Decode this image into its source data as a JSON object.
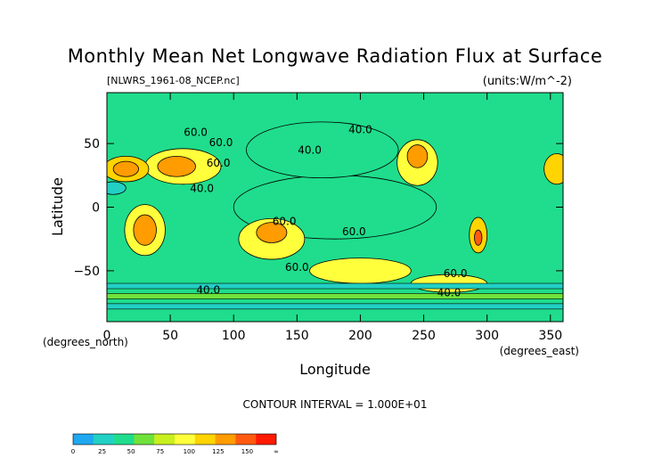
{
  "chart_data": {
    "type": "heatmap",
    "title": "Monthly Mean Net Longwave Radiation Flux at Surface",
    "source_label": "[NLWRS_1961-08_NCEP.nc]",
    "units_label": "(units:W/m^-2)",
    "xlabel": "Longitude",
    "ylabel": "Latitude",
    "x_unit_label": "(degrees_east)",
    "y_unit_label": "(degrees_north)",
    "xlim": [
      0,
      360
    ],
    "ylim": [
      -90,
      90
    ],
    "x_ticks": [
      "0",
      "50",
      "100",
      "150",
      "200",
      "250",
      "300",
      "350"
    ],
    "x_tick_values": [
      0,
      50,
      100,
      150,
      200,
      250,
      300,
      350
    ],
    "y_ticks": [
      "50",
      "0",
      "−50"
    ],
    "y_tick_values": [
      50,
      0,
      -50
    ],
    "contour_interval_text": "CONTOUR INTERVAL = 1.000E+01",
    "contour_labels": [
      {
        "text": "60.0",
        "lon": 70,
        "lat": 56
      },
      {
        "text": "60.0",
        "lon": 90,
        "lat": 48
      },
      {
        "text": "60.0",
        "lon": 88,
        "lat": 32
      },
      {
        "text": "40.0",
        "lon": 160,
        "lat": 42
      },
      {
        "text": "40.0",
        "lon": 200,
        "lat": 58
      },
      {
        "text": "40.0",
        "lon": 75,
        "lat": 12
      },
      {
        "text": "60.0",
        "lon": 140,
        "lat": -14
      },
      {
        "text": "60.0",
        "lon": 195,
        "lat": -22
      },
      {
        "text": "60.0",
        "lon": 150,
        "lat": -50
      },
      {
        "text": "60.0",
        "lon": 275,
        "lat": -55
      },
      {
        "text": "40.0",
        "lon": 80,
        "lat": -68
      },
      {
        "text": "40.0",
        "lon": 270,
        "lat": -70
      }
    ],
    "colorbar": {
      "tick_labels": [
        "0",
        "25",
        "50",
        "75",
        "100",
        "125",
        "150",
        "∞"
      ],
      "colors": [
        "#1ea8f0",
        "#22d0c4",
        "#1fdd8c",
        "#6fe23a",
        "#c8ef1e",
        "#ffff3c",
        "#ffd400",
        "#ff9c00",
        "#ff5a10",
        "#ff1a00"
      ]
    },
    "regions": [
      {
        "level": 6,
        "lon": 15,
        "lat": 30,
        "rx": 18,
        "ry": 10
      },
      {
        "level": 7,
        "lon": 15,
        "lat": 30,
        "rx": 10,
        "ry": 6
      },
      {
        "level": 5,
        "lon": 60,
        "lat": 32,
        "rx": 30,
        "ry": 14
      },
      {
        "level": 7,
        "lon": 55,
        "lat": 32,
        "rx": 15,
        "ry": 8
      },
      {
        "level": 5,
        "lon": 30,
        "lat": -18,
        "rx": 16,
        "ry": 20
      },
      {
        "level": 7,
        "lon": 30,
        "lat": -18,
        "rx": 9,
        "ry": 12
      },
      {
        "level": 5,
        "lon": 130,
        "lat": -25,
        "rx": 26,
        "ry": 16
      },
      {
        "level": 7,
        "lon": 130,
        "lat": -20,
        "rx": 12,
        "ry": 8
      },
      {
        "level": 5,
        "lon": 245,
        "lat": 35,
        "rx": 16,
        "ry": 18
      },
      {
        "level": 7,
        "lon": 245,
        "lat": 40,
        "rx": 8,
        "ry": 9
      },
      {
        "level": 6,
        "lon": 293,
        "lat": -22,
        "rx": 7,
        "ry": 14
      },
      {
        "level": 8,
        "lon": 293,
        "lat": -24,
        "rx": 3,
        "ry": 6
      },
      {
        "level": 5,
        "lon": 200,
        "lat": -50,
        "rx": 40,
        "ry": 10
      },
      {
        "level": 5,
        "lon": 270,
        "lat": -60,
        "rx": 30,
        "ry": 7
      },
      {
        "level": 6,
        "lon": 355,
        "lat": 30,
        "rx": 10,
        "ry": 12
      },
      {
        "level": 2,
        "lon": 180,
        "lat": 0,
        "rx": 80,
        "ry": 25
      },
      {
        "level": 2,
        "lon": 170,
        "lat": 45,
        "rx": 60,
        "ry": 22
      },
      {
        "level": 1,
        "lon": 5,
        "lat": 15,
        "rx": 10,
        "ry": 5
      }
    ]
  }
}
